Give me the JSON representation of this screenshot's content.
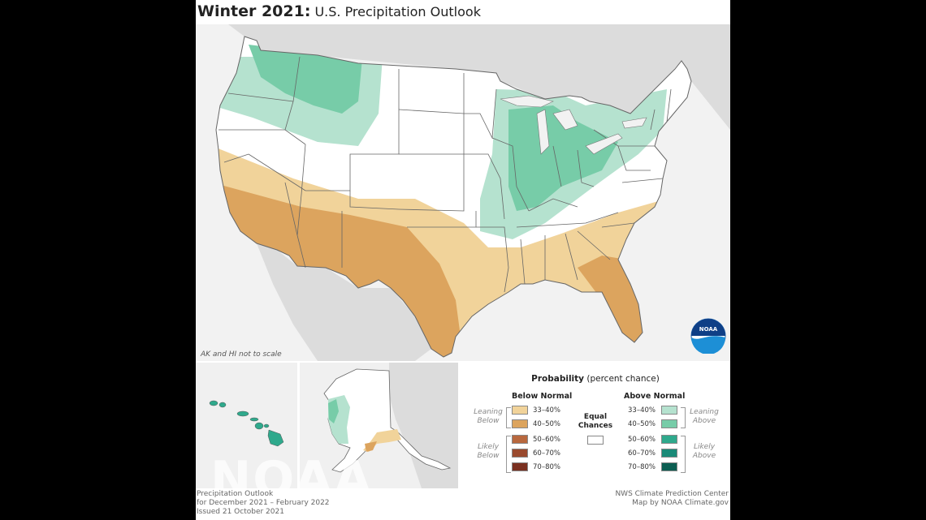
{
  "title": {
    "bold": "Winter 2021:",
    "rest": "U.S. Precipitation Outlook"
  },
  "scale_note": "AK and HI not to scale",
  "legend": {
    "title_bold": "Probability",
    "title_rest": "(percent chance)",
    "below_header": "Below Normal",
    "above_header": "Above Normal",
    "equal_line1": "Equal",
    "equal_line2": "Chances",
    "leaning_below": [
      "Leaning",
      "Below"
    ],
    "likely_below": [
      "Likely",
      "Below"
    ],
    "leaning_above": [
      "Leaning",
      "Above"
    ],
    "likely_above": [
      "Likely",
      "Above"
    ],
    "below": [
      {
        "label": "33–40%",
        "color": "#f1d39a"
      },
      {
        "label": "40–50%",
        "color": "#dca45e"
      },
      {
        "label": "50–60%",
        "color": "#b8683e"
      },
      {
        "label": "60–70%",
        "color": "#9a4a2e"
      },
      {
        "label": "70–80%",
        "color": "#7a3020"
      }
    ],
    "above": [
      {
        "label": "33–40%",
        "color": "#b5e2cf"
      },
      {
        "label": "40–50%",
        "color": "#77cca8"
      },
      {
        "label": "50–60%",
        "color": "#2fa98c"
      },
      {
        "label": "60–70%",
        "color": "#1a8a78"
      },
      {
        "label": "70–80%",
        "color": "#0c5e52"
      }
    ]
  },
  "footer": {
    "left_line1": "Precipitation Outlook",
    "left_line2": "for December 2021 – February 2022",
    "left_line3": "Issued 21 October 2021",
    "right_line1": "NWS Climate Prediction Center",
    "right_line2": "Map by NOAA Climate.gov"
  },
  "watermark": "NOAA",
  "logo_text": "NOAA",
  "colors": {
    "land_background": "#d9d9d9",
    "ocean": "#f2f2f2",
    "us_land": "#ffffff",
    "border": "#666666",
    "noaa_blue": "#1a5fa8"
  }
}
